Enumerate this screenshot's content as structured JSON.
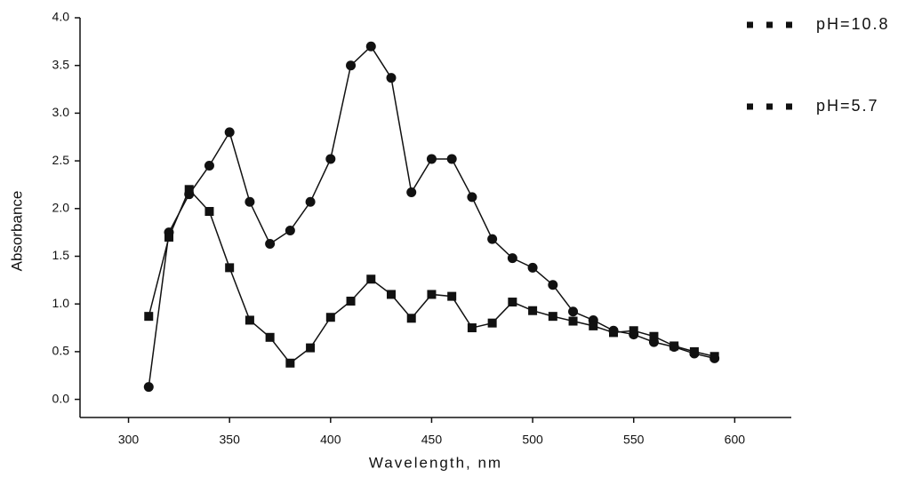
{
  "chart_data": {
    "type": "line",
    "x_label": "Wavelength, nm",
    "y_label": "Absorbance",
    "x": [
      310,
      320,
      330,
      340,
      350,
      360,
      370,
      380,
      390,
      400,
      410,
      420,
      430,
      440,
      450,
      460,
      470,
      480,
      490,
      500,
      510,
      520,
      530,
      540,
      550,
      560,
      570,
      580,
      590
    ],
    "series": [
      {
        "name": "pH=10.8",
        "color": "#111111",
        "marker": "circle",
        "values": [
          0.13,
          1.75,
          2.15,
          2.45,
          2.8,
          2.07,
          1.63,
          1.77,
          2.07,
          2.52,
          3.5,
          3.7,
          3.37,
          2.17,
          2.52,
          2.52,
          2.12,
          1.68,
          1.48,
          1.38,
          1.2,
          0.92,
          0.83,
          0.72,
          0.68,
          0.6,
          0.55,
          0.48,
          0.43
        ]
      },
      {
        "name": "pH=5.7",
        "color": "#111111",
        "marker": "square",
        "values": [
          0.87,
          1.7,
          2.2,
          1.97,
          1.38,
          0.83,
          0.65,
          0.38,
          0.54,
          0.86,
          1.03,
          1.26,
          1.1,
          0.85,
          1.1,
          1.08,
          0.75,
          0.8,
          1.02,
          0.93,
          0.87,
          0.82,
          0.77,
          0.7,
          0.72,
          0.66,
          0.56,
          0.5,
          0.45
        ]
      }
    ],
    "xlim": [
      276,
      628
    ],
    "xticks": [
      300,
      350,
      400,
      450,
      500,
      550,
      600
    ],
    "ylim": [
      -0.19,
      4.0
    ],
    "yticks": [
      {
        "value": 0,
        "label": "0.0"
      },
      0.5,
      {
        "value": 1,
        "label": "1.0"
      },
      1.5,
      {
        "value": 2,
        "label": "2.0"
      },
      2.5,
      {
        "value": 3,
        "label": "3.0"
      },
      3.5,
      {
        "value": 4,
        "label": "4.0"
      }
    ],
    "grid": false,
    "legend": "upper right"
  }
}
